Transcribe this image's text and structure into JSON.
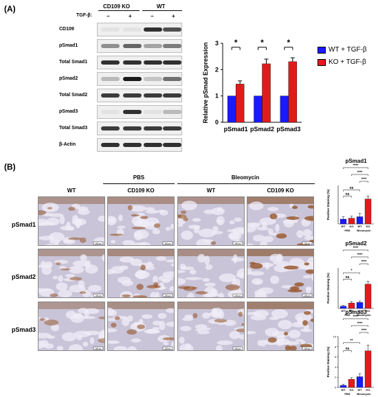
{
  "panels": {
    "a": "(A)",
    "b": "(B)"
  },
  "blot": {
    "groups": [
      "CD109 KO",
      "WT"
    ],
    "treatment_label": "TGF-β:",
    "treatment_marks": [
      "−",
      "+",
      "−",
      "+"
    ],
    "rows": [
      "CD109",
      "pSmad1",
      "Total Smad1",
      "pSmad2",
      "Total Smad2",
      "pSmad3",
      "Total Smad3",
      "β-Actin"
    ],
    "intensity": [
      [
        0.05,
        0.05,
        0.9,
        0.75
      ],
      [
        0.45,
        0.65,
        0.35,
        0.55
      ],
      [
        0.9,
        0.9,
        0.9,
        0.9
      ],
      [
        0.25,
        1.0,
        0.2,
        0.6
      ],
      [
        0.85,
        0.85,
        0.85,
        0.85
      ],
      [
        0.05,
        0.9,
        0.05,
        0.25
      ],
      [
        0.85,
        0.85,
        0.85,
        0.85
      ],
      [
        0.9,
        0.9,
        0.9,
        0.9
      ]
    ]
  },
  "ihc": {
    "conditions": [
      "PBS",
      "Bleomycin"
    ],
    "genotypes": [
      "WT",
      "CD109 KO",
      "WT",
      "CD109 KO"
    ],
    "rows": [
      "pSmad1",
      "pSmad2",
      "pSmad3"
    ],
    "scale": "100 μm"
  },
  "chart_data": [
    {
      "type": "bar",
      "categories": [
        "pSmad1",
        "pSmad2",
        "pSmad3"
      ],
      "series": [
        {
          "name": "WT + TGF-β",
          "values": [
            1.0,
            1.0,
            1.0
          ],
          "errors": [
            0,
            0,
            0
          ],
          "color": "#1a1aff"
        },
        {
          "name": "KO + TGF-β",
          "values": [
            1.45,
            2.22,
            2.3
          ],
          "errors": [
            0.12,
            0.18,
            0.15
          ],
          "color": "#e31a1c"
        }
      ],
      "ylabel": "Relative pSmad Expression",
      "ylim": [
        0,
        3
      ],
      "yticks": [
        "0",
        "1",
        "2",
        "3"
      ],
      "significance": [
        "*",
        "*",
        "*"
      ]
    },
    {
      "type": "bar",
      "title": "pSmad1",
      "ylabel": "Positive Staining (%)",
      "categories": [
        "WT",
        "KO",
        "WT",
        "KO"
      ],
      "groups": [
        "PBS",
        "Bleomycin"
      ],
      "values": [
        1.0,
        1.2,
        1.5,
        5.2
      ],
      "errors": [
        0.5,
        0.4,
        0.7,
        0.6
      ],
      "colors": [
        "#1a1aff",
        "#e31a1c",
        "#1a1aff",
        "#e31a1c"
      ],
      "ylim": [
        0,
        8
      ],
      "brackets": [
        "ns",
        "ns",
        "****",
        "****",
        "****"
      ]
    },
    {
      "type": "bar",
      "title": "pSmad2",
      "ylabel": "Positive Staining (%)",
      "categories": [
        "WT",
        "KO",
        "WT",
        "KO"
      ],
      "groups": [
        "PBS",
        "Bleomycin"
      ],
      "values": [
        0.8,
        2.0,
        2.2,
        9.0
      ],
      "errors": [
        0.3,
        0.5,
        0.5,
        1.0
      ],
      "colors": [
        "#1a1aff",
        "#e31a1c",
        "#1a1aff",
        "#e31a1c"
      ],
      "ylim": [
        0,
        15
      ],
      "brackets": [
        "ns",
        "*",
        "****",
        "****",
        "****"
      ]
    },
    {
      "type": "bar",
      "title": "pSmad3",
      "ylabel": "Positive Staining (%)",
      "categories": [
        "WT",
        "KO",
        "WT",
        "KO"
      ],
      "groups": [
        "PBS",
        "Bleomycin"
      ],
      "values": [
        0.4,
        1.6,
        2.1,
        7.2
      ],
      "errors": [
        0.2,
        0.3,
        0.6,
        1.1
      ],
      "colors": [
        "#1a1aff",
        "#e31a1c",
        "#1a1aff",
        "#e31a1c"
      ],
      "ylim": [
        0,
        10
      ],
      "yticks": [
        "0",
        "2",
        "4",
        "6",
        "8",
        "10"
      ],
      "brackets": [
        "ns",
        "**",
        "****",
        "****",
        "****"
      ]
    }
  ]
}
